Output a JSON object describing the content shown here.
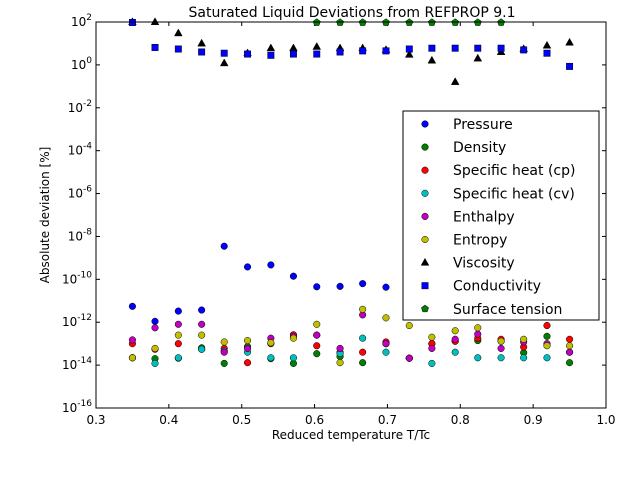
{
  "chart_data": {
    "type": "scatter",
    "title": "Saturated Liquid Deviations from REFPROP 9.1",
    "xlabel": "Reduced temperature T/Tc",
    "ylabel": "Absolute deviation [%]",
    "xlim": [
      0.3,
      1.0
    ],
    "ylim": [
      1e-16,
      100
    ],
    "yscale": "log",
    "grid": false,
    "legend_position": "right",
    "x_ticks": [
      "0.3",
      "0.4",
      "0.5",
      "0.6",
      "0.7",
      "0.8",
      "0.9",
      "1.0"
    ],
    "y_ticks": [
      {
        "base": "10",
        "exp": "-16"
      },
      {
        "base": "10",
        "exp": "-14"
      },
      {
        "base": "10",
        "exp": "-12"
      },
      {
        "base": "10",
        "exp": "-10"
      },
      {
        "base": "10",
        "exp": "-8"
      },
      {
        "base": "10",
        "exp": "-6"
      },
      {
        "base": "10",
        "exp": "-4"
      },
      {
        "base": "10",
        "exp": "-2"
      },
      {
        "base": "10",
        "exp": "0"
      },
      {
        "base": "10",
        "exp": "2"
      }
    ],
    "series": [
      {
        "name": "Pressure",
        "marker": "circle",
        "color": "#0000ff",
        "points": [
          [
            0.35,
            5.5e-12
          ],
          [
            0.381,
            1.1e-12
          ],
          [
            0.413,
            3.3e-12
          ],
          [
            0.445,
            3.7e-12
          ],
          [
            0.476,
            3.5e-09
          ],
          [
            0.508,
            3.8e-10
          ],
          [
            0.54,
            4.7e-10
          ],
          [
            0.571,
            1.4e-10
          ],
          [
            0.603,
            4.5e-11
          ],
          [
            0.635,
            4.7e-11
          ],
          [
            0.666,
            6.3e-11
          ],
          [
            0.698,
            4.3e-11
          ]
        ]
      },
      {
        "name": "Density",
        "marker": "circle",
        "color": "#008000",
        "points": [
          [
            0.35,
            2.2e-14
          ],
          [
            0.381,
            2e-14
          ],
          [
            0.413,
            2.1e-14
          ],
          [
            0.445,
            6.4e-14
          ],
          [
            0.476,
            1.2e-14
          ],
          [
            0.508,
            7.3e-14
          ],
          [
            0.54,
            2e-14
          ],
          [
            0.571,
            1.2e-14
          ],
          [
            0.603,
            3.4e-14
          ],
          [
            0.635,
            2.5e-14
          ],
          [
            0.666,
            1.3e-14
          ],
          [
            0.698,
            1e-13
          ],
          [
            0.73,
            2.1e-14
          ],
          [
            0.761,
            1e-13
          ],
          [
            0.793,
            1.3e-13
          ],
          [
            0.824,
            1.4e-13
          ],
          [
            0.856,
            1.3e-13
          ],
          [
            0.887,
            3.8e-14
          ],
          [
            0.919,
            2.2e-13
          ],
          [
            0.95,
            1.3e-14
          ]
        ]
      },
      {
        "name": "Specific heat (cp)",
        "marker": "circle",
        "color": "#ff0000",
        "points": [
          [
            0.35,
            1e-13
          ],
          [
            0.381,
            5.5e-14
          ],
          [
            0.413,
            1e-13
          ],
          [
            0.445,
            5.5e-14
          ],
          [
            0.476,
            6e-14
          ],
          [
            0.508,
            1.3e-14
          ],
          [
            0.54,
            1e-13
          ],
          [
            0.571,
            2.6e-13
          ],
          [
            0.603,
            8e-14
          ],
          [
            0.635,
            4e-14
          ],
          [
            0.666,
            4e-14
          ],
          [
            0.698,
            1.2e-13
          ],
          [
            0.73,
            2.1e-14
          ],
          [
            0.761,
            1e-13
          ],
          [
            0.793,
            1.3e-13
          ],
          [
            0.824,
            1.8e-13
          ],
          [
            0.856,
            1.6e-13
          ],
          [
            0.887,
            7e-14
          ],
          [
            0.919,
            7e-13
          ],
          [
            0.95,
            1.6e-13
          ]
        ]
      },
      {
        "name": "Specific heat (cv)",
        "marker": "circle",
        "color": "#00bfbf",
        "points": [
          [
            0.35,
            2.2e-14
          ],
          [
            0.381,
            1.2e-14
          ],
          [
            0.413,
            2.2e-14
          ],
          [
            0.445,
            5.5e-14
          ],
          [
            0.476,
            4.5e-14
          ],
          [
            0.508,
            4e-14
          ],
          [
            0.54,
            2.2e-14
          ],
          [
            0.571,
            2.2e-14
          ],
          [
            0.603,
            2.5e-13
          ],
          [
            0.635,
            3.5e-14
          ],
          [
            0.666,
            1.8e-13
          ],
          [
            0.698,
            4e-14
          ],
          [
            0.73,
            2.1e-14
          ],
          [
            0.761,
            1.2e-14
          ],
          [
            0.793,
            4e-14
          ],
          [
            0.824,
            2.2e-14
          ],
          [
            0.856,
            2.2e-14
          ],
          [
            0.887,
            2.2e-14
          ],
          [
            0.919,
            2.2e-14
          ],
          [
            0.95,
            4e-14
          ]
        ]
      },
      {
        "name": "Enthalpy",
        "marker": "circle",
        "color": "#bf00bf",
        "points": [
          [
            0.35,
            1.5e-13
          ],
          [
            0.381,
            5.5e-13
          ],
          [
            0.413,
            8e-13
          ],
          [
            0.445,
            8e-13
          ],
          [
            0.476,
            4e-14
          ],
          [
            0.508,
            6e-14
          ],
          [
            0.54,
            1.8e-13
          ],
          [
            0.571,
            2.2e-13
          ],
          [
            0.603,
            2.5e-13
          ],
          [
            0.635,
            6e-14
          ],
          [
            0.666,
            2.2e-12
          ],
          [
            0.698,
            1e-13
          ],
          [
            0.73,
            2.1e-14
          ],
          [
            0.761,
            6e-14
          ],
          [
            0.793,
            1.6e-13
          ],
          [
            0.824,
            2.8e-13
          ],
          [
            0.856,
            6e-14
          ],
          [
            0.887,
            1.2e-13
          ],
          [
            0.919,
            1e-13
          ],
          [
            0.95,
            4e-14
          ]
        ]
      },
      {
        "name": "Entropy",
        "marker": "circle",
        "color": "#bfbf00",
        "points": [
          [
            0.35,
            2.2e-14
          ],
          [
            0.381,
            6e-14
          ],
          [
            0.413,
            2.5e-13
          ],
          [
            0.445,
            2.5e-13
          ],
          [
            0.476,
            1.2e-13
          ],
          [
            0.508,
            1.4e-13
          ],
          [
            0.54,
            1.1e-13
          ],
          [
            0.571,
            1.8e-13
          ],
          [
            0.603,
            8e-13
          ],
          [
            0.635,
            1.3e-14
          ],
          [
            0.666,
            4e-12
          ],
          [
            0.698,
            1.6e-12
          ],
          [
            0.73,
            7e-13
          ],
          [
            0.761,
            2e-13
          ],
          [
            0.793,
            4e-13
          ],
          [
            0.824,
            5.5e-13
          ],
          [
            0.856,
            1.3e-13
          ],
          [
            0.887,
            1.6e-13
          ],
          [
            0.919,
            8e-14
          ],
          [
            0.95,
            8e-14
          ]
        ]
      },
      {
        "name": "Viscosity",
        "marker": "triangle",
        "color": "#000000",
        "points": [
          [
            0.35,
            100
          ],
          [
            0.381,
            100
          ],
          [
            0.413,
            30
          ],
          [
            0.445,
            10
          ],
          [
            0.476,
            1.2
          ],
          [
            0.508,
            3.5
          ],
          [
            0.54,
            6
          ],
          [
            0.571,
            6
          ],
          [
            0.603,
            7
          ],
          [
            0.635,
            6
          ],
          [
            0.666,
            6
          ],
          [
            0.698,
            5
          ],
          [
            0.73,
            3
          ],
          [
            0.761,
            1.6
          ],
          [
            0.793,
            0.16
          ],
          [
            0.824,
            2
          ],
          [
            0.856,
            4
          ],
          [
            0.887,
            5.5
          ],
          [
            0.919,
            8
          ],
          [
            0.95,
            11
          ]
        ]
      },
      {
        "name": "Conductivity",
        "marker": "square",
        "color": "#0000ff",
        "points": [
          [
            0.35,
            95
          ],
          [
            0.381,
            6.5
          ],
          [
            0.413,
            5.5
          ],
          [
            0.445,
            4
          ],
          [
            0.476,
            3.5
          ],
          [
            0.508,
            3.2
          ],
          [
            0.54,
            2.8
          ],
          [
            0.571,
            3.2
          ],
          [
            0.603,
            3.2
          ],
          [
            0.635,
            4
          ],
          [
            0.666,
            4.5
          ],
          [
            0.698,
            4.5
          ],
          [
            0.73,
            5.5
          ],
          [
            0.761,
            6
          ],
          [
            0.793,
            6
          ],
          [
            0.824,
            6
          ],
          [
            0.856,
            6
          ],
          [
            0.887,
            5
          ],
          [
            0.919,
            3.5
          ],
          [
            0.95,
            0.85
          ]
        ]
      },
      {
        "name": "Surface tension",
        "marker": "pentagon",
        "color": "#008000",
        "points": [
          [
            0.603,
            95
          ],
          [
            0.635,
            95
          ],
          [
            0.666,
            95
          ],
          [
            0.698,
            95
          ],
          [
            0.73,
            95
          ],
          [
            0.761,
            95
          ],
          [
            0.793,
            95
          ],
          [
            0.824,
            95
          ],
          [
            0.856,
            95
          ]
        ]
      }
    ]
  }
}
